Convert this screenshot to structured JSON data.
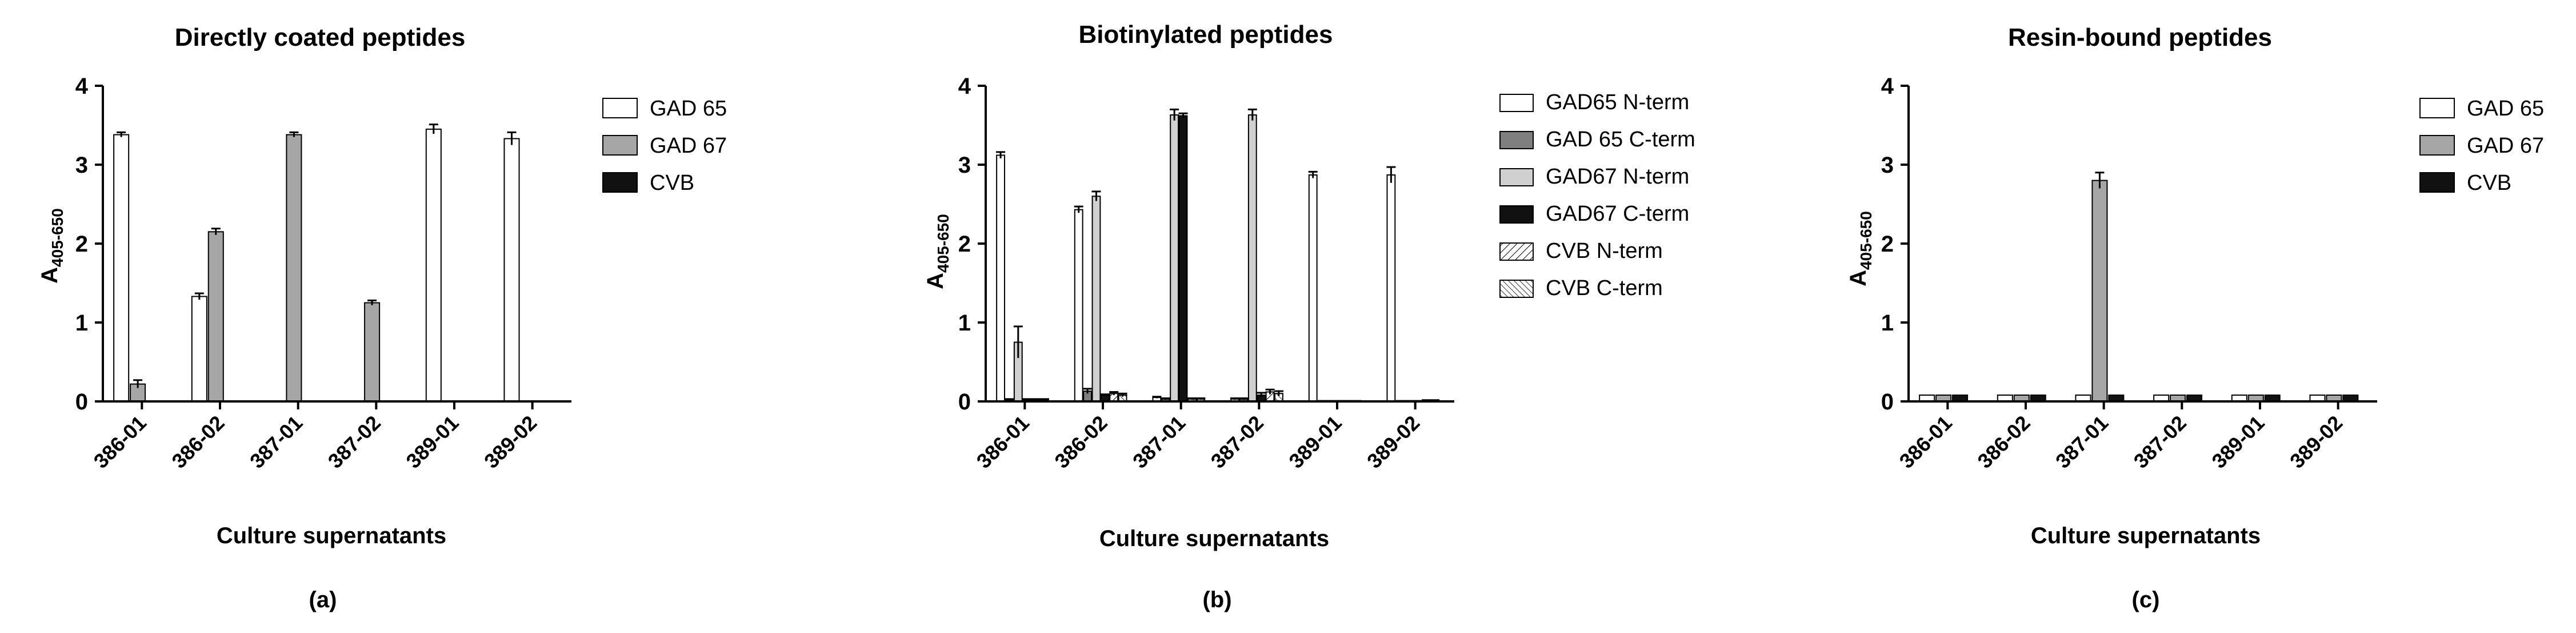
{
  "chart_data": [
    {
      "type": "bar",
      "title": "Directly coated peptides",
      "panel_label": "(a)",
      "xlabel": "Culture supernatants",
      "ylabel_main": "A",
      "ylabel_sub": "405-650",
      "ylim": [
        0,
        4
      ],
      "yticks": [
        0,
        1,
        2,
        3,
        4
      ],
      "categories": [
        "386-01",
        "386-02",
        "387-01",
        "387-02",
        "389-01",
        "389-02"
      ],
      "series": [
        {
          "name": "GAD 65",
          "pattern": "white",
          "values": [
            3.38,
            1.33,
            0,
            0,
            3.45,
            3.33
          ],
          "errors": [
            0.03,
            0.04,
            0,
            0,
            0.06,
            0.08
          ]
        },
        {
          "name": "GAD 67",
          "pattern": "gray",
          "values": [
            0.22,
            2.15,
            3.38,
            1.25,
            0,
            0
          ],
          "errors": [
            0.05,
            0.04,
            0.03,
            0.03,
            0,
            0
          ]
        },
        {
          "name": "CVB",
          "pattern": "black",
          "values": [
            0,
            0,
            0,
            0,
            0,
            0
          ],
          "errors": [
            0,
            0,
            0,
            0,
            0,
            0
          ]
        }
      ]
    },
    {
      "type": "bar",
      "title": "Biotinylated peptides",
      "panel_label": "(b)",
      "xlabel": "Culture supernatants",
      "ylabel_main": "A",
      "ylabel_sub": "405-650",
      "ylim": [
        0,
        4
      ],
      "yticks": [
        0,
        1,
        2,
        3,
        4
      ],
      "categories": [
        "386-01",
        "386-02",
        "387-01",
        "387-02",
        "389-01",
        "389-02"
      ],
      "series": [
        {
          "name": "GAD65 N-term",
          "pattern": "white",
          "values": [
            3.12,
            2.43,
            0.05,
            0.03,
            2.87,
            2.87
          ],
          "errors": [
            0.04,
            0.04,
            0.01,
            0.01,
            0.04,
            0.1
          ]
        },
        {
          "name": "GAD 65 C-term",
          "pattern": "darkgray",
          "values": [
            0.02,
            0.13,
            0.03,
            0.03,
            0.01,
            0.01
          ],
          "errors": [
            0.01,
            0.03,
            0.01,
            0.01,
            0,
            0
          ]
        },
        {
          "name": "GAD67 N-term",
          "pattern": "lightgray",
          "values": [
            0.75,
            2.6,
            3.63,
            3.63,
            0.01,
            0.01
          ],
          "errors": [
            0.2,
            0.06,
            0.07,
            0.07,
            0,
            0
          ]
        },
        {
          "name": "GAD67 C-term",
          "pattern": "black",
          "values": [
            0.02,
            0.08,
            3.62,
            0.08,
            0.01,
            0.01
          ],
          "errors": [
            0.01,
            0.01,
            0.03,
            0.03,
            0,
            0
          ]
        },
        {
          "name": "CVB N-term",
          "pattern": "hatch",
          "values": [
            0.02,
            0.1,
            0.03,
            0.12,
            0.01,
            0.02
          ],
          "errors": [
            0.01,
            0.02,
            0.01,
            0.03,
            0,
            0
          ]
        },
        {
          "name": "CVB C-term",
          "pattern": "crosshatch",
          "values": [
            0.02,
            0.08,
            0.03,
            0.1,
            0.01,
            0.02
          ],
          "errors": [
            0.01,
            0.02,
            0.01,
            0.03,
            0,
            0
          ]
        }
      ]
    },
    {
      "type": "bar",
      "title": "Resin-bound peptides",
      "panel_label": "(c)",
      "xlabel": "Culture supernatants",
      "ylabel_main": "A",
      "ylabel_sub": "405-650",
      "ylim": [
        0,
        4
      ],
      "yticks": [
        0,
        1,
        2,
        3,
        4
      ],
      "categories": [
        "386-01",
        "386-02",
        "387-01",
        "387-02",
        "389-01",
        "389-02"
      ],
      "series": [
        {
          "name": "GAD 65",
          "pattern": "white",
          "values": [
            0.08,
            0.08,
            0.08,
            0.08,
            0.08,
            0.08
          ],
          "errors": [
            0,
            0,
            0,
            0,
            0,
            0
          ]
        },
        {
          "name": "GAD 67",
          "pattern": "gray",
          "values": [
            0.08,
            0.08,
            2.8,
            0.08,
            0.08,
            0.08
          ],
          "errors": [
            0,
            0,
            0.1,
            0,
            0,
            0
          ]
        },
        {
          "name": "CVB",
          "pattern": "black",
          "values": [
            0.08,
            0.08,
            0.08,
            0.08,
            0.08,
            0.08
          ],
          "errors": [
            0,
            0,
            0,
            0,
            0,
            0
          ]
        }
      ]
    }
  ],
  "colors": {
    "white": "#ffffff",
    "gray": "#a6a6a6",
    "darkgray": "#7f7f7f",
    "lightgray": "#d0d0d0",
    "black": "#111111",
    "axis": "#000000"
  }
}
